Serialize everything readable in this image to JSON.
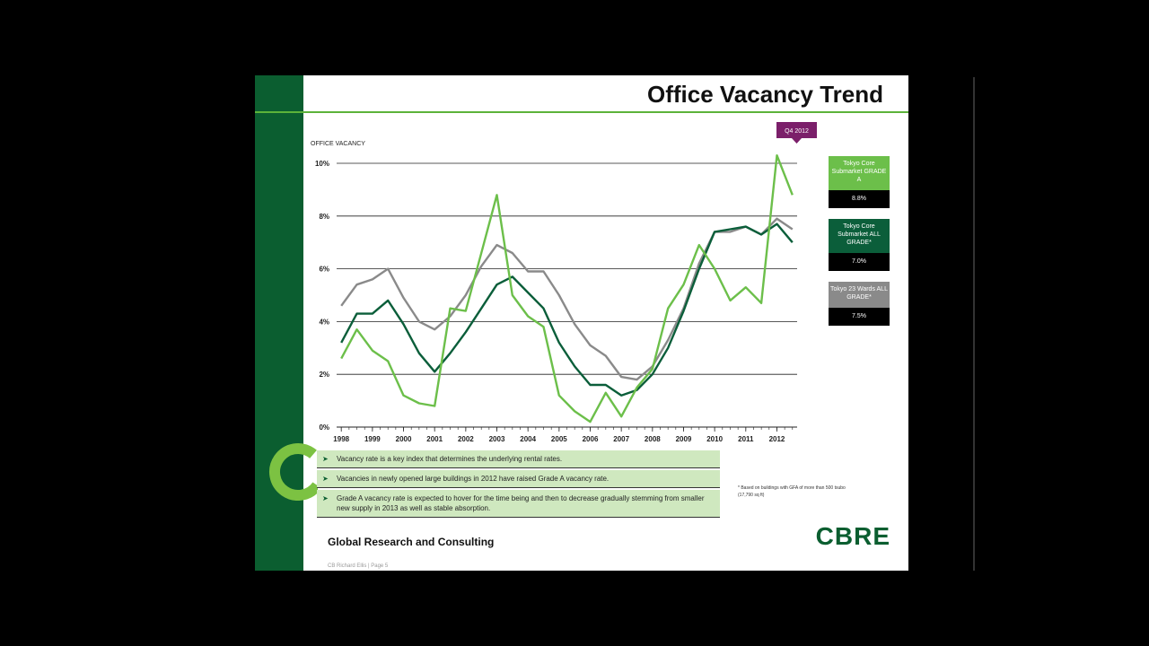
{
  "slide": {
    "title": "Office Vacancy Trend",
    "bullets": [
      "Vacancy rate is a key index that determines the underlying rental rates.",
      "Vacancies in newly opened large buildings in 2012 have raised Grade A vacancy rate.",
      "Grade A vacancy rate is expected to hover for the time being and then to decrease gradually  stemming from smaller new supply in 2013 as well as stable absorption."
    ],
    "footnote": "* Based on buildings with GFA of more than 500 tsubo (17,790 sq ft)",
    "division": "Global Research and Consulting",
    "logo": "CBRE",
    "page": "CB Richard Ellis  |  Page 5"
  },
  "chart_data": {
    "type": "line",
    "y_label": "OFFICE VACANCY",
    "annotation": "Q4 2012",
    "x": [
      1998,
      1998.5,
      1999,
      1999.5,
      2000,
      2000.5,
      2001,
      2001.5,
      2002,
      2002.5,
      2003,
      2003.5,
      2004,
      2004.5,
      2005,
      2005.5,
      2006,
      2006.5,
      2007,
      2007.5,
      2008,
      2008.5,
      2009,
      2009.5,
      2010,
      2010.5,
      2011,
      2011.5,
      2012,
      2012.5
    ],
    "xlim": [
      1997.85,
      2012.65
    ],
    "xticks": [
      1998,
      1999,
      2000,
      2001,
      2002,
      2003,
      2004,
      2005,
      2006,
      2007,
      2008,
      2009,
      2010,
      2011,
      2012
    ],
    "ylim": [
      0,
      10
    ],
    "yticks": [
      {
        "value": 0,
        "label": "0%"
      },
      {
        "value": 2,
        "label": "2%"
      },
      {
        "value": 4,
        "label": "4%"
      },
      {
        "value": 6,
        "label": "6%"
      },
      {
        "value": 8,
        "label": "8%"
      },
      {
        "value": 10,
        "label": "10%"
      }
    ],
    "grid": true,
    "series": [
      {
        "name": "Tokyo 23 Wards ALL GRADE*",
        "color": "#8a8a8a",
        "label": "7.5%",
        "values": [
          4.6,
          5.4,
          5.6,
          6.0,
          4.9,
          4.0,
          3.7,
          4.2,
          5.0,
          6.1,
          6.9,
          6.6,
          5.9,
          5.9,
          5.0,
          3.9,
          3.1,
          2.7,
          1.9,
          1.8,
          2.3,
          3.3,
          4.5,
          6.2,
          7.4,
          7.4,
          7.6,
          7.3,
          7.9,
          7.5
        ]
      },
      {
        "name": "Tokyo Core Submarket ALL GRADE*",
        "color": "#0b5e3a",
        "label": "7.0%",
        "values": [
          3.2,
          4.3,
          4.3,
          4.8,
          3.9,
          2.8,
          2.1,
          2.8,
          3.6,
          4.5,
          5.4,
          5.7,
          5.1,
          4.5,
          3.2,
          2.3,
          1.6,
          1.6,
          1.2,
          1.4,
          2.0,
          3.0,
          4.4,
          6.0,
          7.4,
          7.5,
          7.6,
          7.3,
          7.7,
          7.0
        ]
      },
      {
        "name": "Tokyo Core Submarket GRADE A",
        "color": "#6cbf4a",
        "label": "8.8%",
        "values": [
          2.6,
          3.7,
          2.9,
          2.5,
          1.2,
          0.9,
          0.8,
          4.5,
          4.4,
          6.6,
          8.8,
          5.0,
          4.2,
          3.8,
          1.2,
          0.6,
          0.2,
          1.3,
          0.4,
          1.5,
          2.2,
          4.5,
          5.4,
          6.9,
          6.0,
          4.8,
          5.3,
          4.7,
          10.3,
          8.8
        ]
      }
    ],
    "legend_order": [
      2,
      1,
      0
    ]
  }
}
